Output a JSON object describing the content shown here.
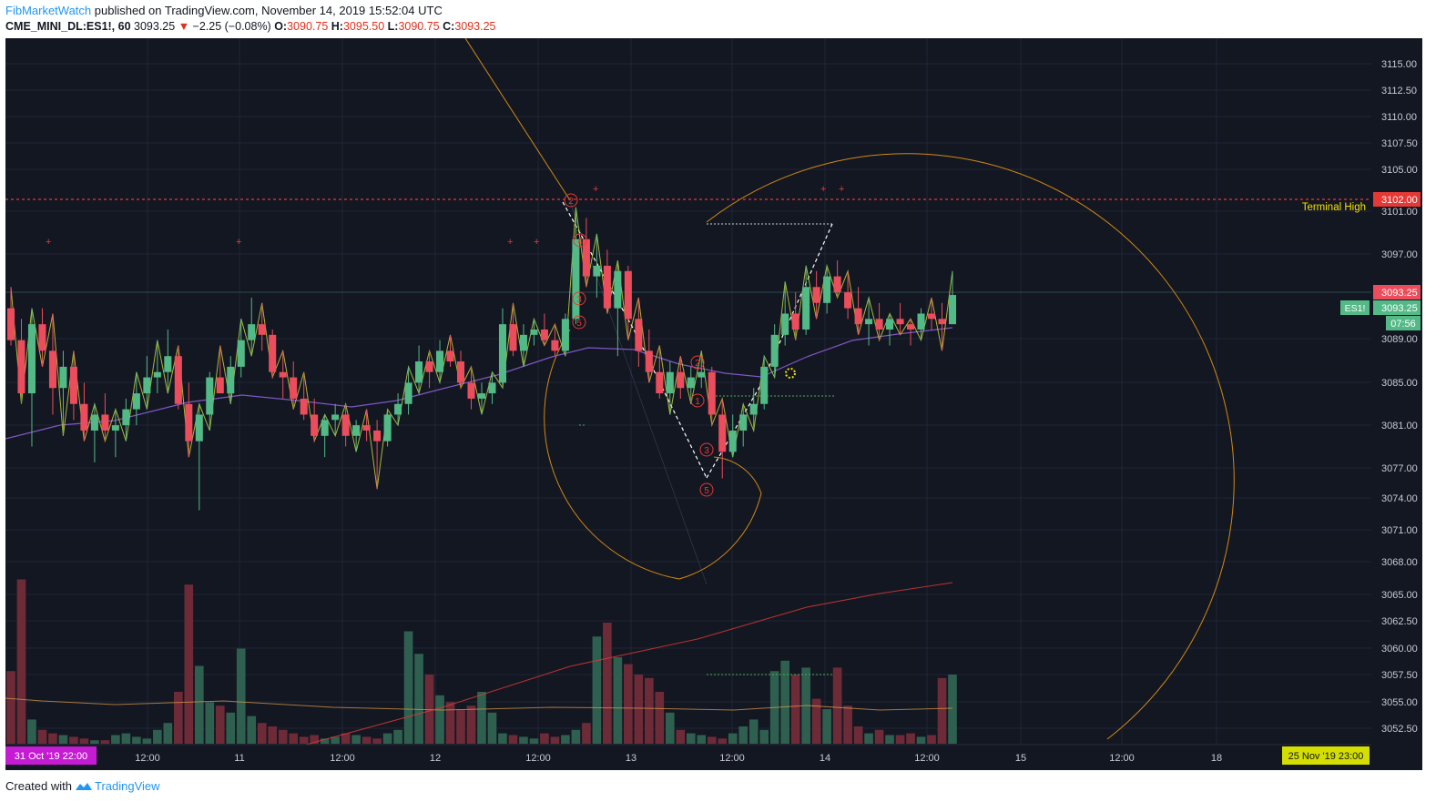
{
  "header": {
    "author": "FibMarketWatch",
    "published": "published on TradingView.com, November 14, 2019 15:52:04 UTC",
    "symbol": "CME_MINI_DL:ES1!, 60",
    "last": "3093.25",
    "change": "−2.25 (−0.08%)",
    "o_label": "O:",
    "o": "3090.75",
    "h_label": "H:",
    "h": "3095.50",
    "l_label": "L:",
    "l": "3090.75",
    "c_label": "C:",
    "c": "3093.25"
  },
  "footer": {
    "created": "Created with",
    "brand": "TradingView"
  },
  "colors": {
    "background": "#131722",
    "up": "#53b987",
    "down": "#eb4d5c",
    "zigzag": "#c8d43a",
    "fib": "#f39c12",
    "ma": "#7e57c2",
    "vol_up": "#2e5f4f",
    "vol_down": "#6d2b38",
    "redline": "#e53935"
  },
  "chart_data": {
    "type": "candlestick",
    "symbol": "ES1!",
    "interval": "60",
    "ylim": [
      3050.5,
      3117.5
    ],
    "y_ticks": [
      "3115.00",
      "3112.50",
      "3110.00",
      "3107.50",
      "3105.00",
      "3101.00",
      "3097.00",
      "3093.25",
      "3089.00",
      "3085.00",
      "3081.00",
      "3077.00",
      "3074.00",
      "3071.00",
      "3068.00",
      "3065.00",
      "3062.50",
      "3060.00",
      "3057.50",
      "3055.00",
      "3052.50"
    ],
    "x_ticks": [
      "12:00",
      "11",
      "12:00",
      "12",
      "12:00",
      "13",
      "12:00",
      "14",
      "12:00",
      "15",
      "12:00",
      "18"
    ],
    "start_label": "31 Oct '19   22:00",
    "end_label": "25 Nov '19   23:00",
    "terminal_high": {
      "label": "Terminal High",
      "price": "3102.00"
    },
    "last_price": "3093.25",
    "symbol_badge": "ES1!",
    "countdown": "07:56",
    "wave_labels": [
      "2",
      "4",
      "3",
      "5",
      "2",
      "1",
      "3",
      "5"
    ],
    "candles": [
      [
        3092.0,
        3094.0,
        3088.5,
        3089.0
      ],
      [
        3089.0,
        3091.0,
        3083.0,
        3084.0
      ],
      [
        3084.0,
        3092.0,
        3079.0,
        3090.5
      ],
      [
        3090.5,
        3092.0,
        3086.5,
        3088.0
      ],
      [
        3088.0,
        3091.5,
        3082.0,
        3084.5
      ],
      [
        3084.5,
        3088.0,
        3080.0,
        3086.5
      ],
      [
        3086.5,
        3088.0,
        3081.5,
        3083.0
      ],
      [
        3083.0,
        3085.0,
        3079.5,
        3080.5
      ],
      [
        3080.5,
        3083.0,
        3077.5,
        3082.0
      ],
      [
        3082.0,
        3084.0,
        3079.5,
        3080.5
      ],
      [
        3080.5,
        3082.5,
        3078.0,
        3081.0
      ],
      [
        3081.0,
        3083.5,
        3079.5,
        3082.5
      ],
      [
        3082.5,
        3086.0,
        3081.0,
        3084.0
      ],
      [
        3084.0,
        3087.5,
        3082.5,
        3085.5
      ],
      [
        3085.5,
        3089.0,
        3084.0,
        3086.0
      ],
      [
        3086.0,
        3090.0,
        3084.0,
        3087.5
      ],
      [
        3087.5,
        3088.5,
        3082.5,
        3083.0
      ],
      [
        3083.0,
        3085.0,
        3078.0,
        3079.5
      ],
      [
        3079.5,
        3083.0,
        3073.0,
        3082.0
      ],
      [
        3082.0,
        3086.0,
        3080.5,
        3085.5
      ],
      [
        3085.5,
        3088.5,
        3084.0,
        3084.0
      ],
      [
        3084.0,
        3087.5,
        3083.0,
        3086.5
      ],
      [
        3086.5,
        3091.0,
        3085.5,
        3089.0
      ],
      [
        3089.0,
        3093.0,
        3087.5,
        3090.5
      ],
      [
        3090.5,
        3092.5,
        3088.0,
        3089.5
      ],
      [
        3089.5,
        3090.0,
        3085.5,
        3086.0
      ],
      [
        3086.0,
        3088.0,
        3083.5,
        3085.5
      ],
      [
        3085.5,
        3087.0,
        3082.5,
        3083.5
      ],
      [
        3083.5,
        3086.0,
        3081.5,
        3082.0
      ],
      [
        3082.0,
        3083.5,
        3079.5,
        3080.0
      ],
      [
        3080.0,
        3082.0,
        3078.0,
        3081.5
      ],
      [
        3081.5,
        3083.0,
        3080.0,
        3082.0
      ],
      [
        3082.0,
        3083.0,
        3079.0,
        3080.0
      ],
      [
        3080.0,
        3081.5,
        3078.5,
        3081.0
      ],
      [
        3081.0,
        3082.5,
        3079.5,
        3080.5
      ],
      [
        3080.5,
        3081.5,
        3075.0,
        3079.5
      ],
      [
        3079.5,
        3082.5,
        3079.0,
        3082.0
      ],
      [
        3082.0,
        3084.0,
        3081.0,
        3083.0
      ],
      [
        3083.0,
        3086.5,
        3082.0,
        3085.0
      ],
      [
        3085.0,
        3088.5,
        3084.0,
        3087.0
      ],
      [
        3087.0,
        3088.0,
        3084.5,
        3086.0
      ],
      [
        3086.0,
        3089.0,
        3085.0,
        3088.0
      ],
      [
        3088.0,
        3089.5,
        3086.5,
        3087.0
      ],
      [
        3087.0,
        3088.0,
        3084.5,
        3085.0
      ],
      [
        3085.0,
        3086.5,
        3082.5,
        3083.5
      ],
      [
        3083.5,
        3085.0,
        3082.0,
        3084.0
      ],
      [
        3084.0,
        3086.0,
        3083.0,
        3085.0
      ],
      [
        3085.0,
        3092.0,
        3084.5,
        3090.5
      ],
      [
        3090.5,
        3092.5,
        3087.5,
        3088.0
      ],
      [
        3088.0,
        3090.5,
        3086.5,
        3089.5
      ],
      [
        3089.5,
        3091.0,
        3088.5,
        3090.0
      ],
      [
        3090.0,
        3091.5,
        3088.5,
        3089.0
      ],
      [
        3089.0,
        3090.5,
        3087.5,
        3088.0
      ],
      [
        3088.0,
        3091.5,
        3087.5,
        3091.0
      ],
      [
        3091.0,
        3101.5,
        3090.5,
        3098.5
      ],
      [
        3098.5,
        3100.5,
        3094.0,
        3095.0
      ],
      [
        3095.0,
        3099.0,
        3093.0,
        3096.0
      ],
      [
        3096.0,
        3097.5,
        3091.5,
        3092.0
      ],
      [
        3092.0,
        3096.5,
        3087.5,
        3095.5
      ],
      [
        3095.5,
        3096.0,
        3089.0,
        3091.0
      ],
      [
        3091.0,
        3093.0,
        3086.5,
        3088.0
      ],
      [
        3088.0,
        3090.0,
        3085.0,
        3086.0
      ],
      [
        3086.0,
        3088.5,
        3083.5,
        3084.0
      ],
      [
        3084.0,
        3087.0,
        3082.0,
        3086.0
      ],
      [
        3086.0,
        3087.5,
        3083.5,
        3084.5
      ],
      [
        3084.5,
        3086.5,
        3083.0,
        3085.5
      ],
      [
        3085.5,
        3088.0,
        3084.5,
        3086.0
      ],
      [
        3086.0,
        3086.5,
        3081.0,
        3082.0
      ],
      [
        3082.0,
        3083.5,
        3076.0,
        3078.5
      ],
      [
        3078.5,
        3082.0,
        3078.0,
        3080.5
      ],
      [
        3080.5,
        3083.0,
        3079.0,
        3082.0
      ],
      [
        3082.0,
        3084.5,
        3080.5,
        3083.0
      ],
      [
        3083.0,
        3087.5,
        3082.5,
        3086.5
      ],
      [
        3086.5,
        3090.5,
        3085.5,
        3089.5
      ],
      [
        3089.5,
        3094.5,
        3088.5,
        3091.5
      ],
      [
        3091.5,
        3093.5,
        3089.0,
        3090.0
      ],
      [
        3090.0,
        3096.0,
        3089.5,
        3094.0
      ],
      [
        3094.0,
        3095.5,
        3091.0,
        3092.5
      ],
      [
        3092.5,
        3096.0,
        3091.5,
        3095.0
      ],
      [
        3095.0,
        3096.5,
        3093.0,
        3093.5
      ],
      [
        3093.5,
        3095.5,
        3091.0,
        3092.0
      ],
      [
        3092.0,
        3094.0,
        3089.5,
        3090.5
      ],
      [
        3090.5,
        3093.0,
        3088.5,
        3091.0
      ],
      [
        3091.0,
        3092.5,
        3089.0,
        3090.0
      ],
      [
        3090.0,
        3091.5,
        3088.5,
        3091.0
      ],
      [
        3091.0,
        3092.5,
        3089.5,
        3090.5
      ],
      [
        3090.5,
        3091.0,
        3088.5,
        3090.0
      ],
      [
        3090.0,
        3092.0,
        3089.0,
        3091.5
      ],
      [
        3091.5,
        3093.0,
        3090.0,
        3091.0
      ],
      [
        3091.0,
        3092.5,
        3088.0,
        3090.5
      ],
      [
        3090.5,
        3095.5,
        3090.5,
        3093.25
      ]
    ],
    "volume": [
      42,
      95,
      14,
      8,
      6,
      5,
      4,
      3,
      2,
      2,
      5,
      6,
      4,
      3,
      8,
      12,
      30,
      92,
      45,
      24,
      22,
      18,
      55,
      16,
      12,
      10,
      8,
      6,
      4,
      5,
      3,
      4,
      6,
      5,
      4,
      3,
      6,
      8,
      65,
      52,
      40,
      28,
      24,
      20,
      22,
      30,
      18,
      6,
      5,
      4,
      3,
      6,
      4,
      5,
      8,
      12,
      62,
      70,
      50,
      46,
      40,
      38,
      30,
      18,
      8,
      6,
      5,
      4,
      3,
      6,
      10,
      14,
      8,
      42,
      48,
      40,
      44,
      26,
      20,
      44,
      22,
      10,
      6,
      8,
      5,
      5,
      6,
      4,
      5,
      38,
      40
    ]
  }
}
